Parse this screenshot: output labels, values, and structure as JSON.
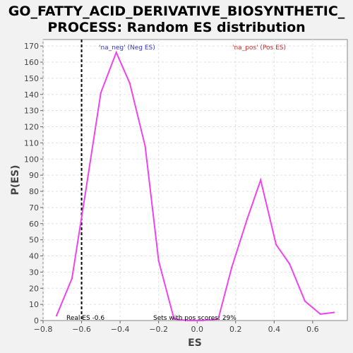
{
  "chart_data": {
    "type": "line",
    "title_lines": [
      "GO_FATTY_ACID_DERIVATIVE_BIOSYNTHETIC_",
      "PROCESS: Random ES distribution"
    ],
    "xlabel": "ES",
    "ylabel": "P(ES)",
    "xlim": [
      -0.8,
      0.78
    ],
    "ylim": [
      0,
      174
    ],
    "xticks": [
      -0.8,
      -0.6,
      -0.4,
      -0.2,
      0.0,
      0.2,
      0.4,
      0.6
    ],
    "xtick_labels": [
      "−0.8",
      "−0.6",
      "−0.4",
      "−0.2",
      "0.0",
      "0.2",
      "0.4",
      "0.6"
    ],
    "yticks": [
      0,
      10,
      20,
      30,
      40,
      50,
      60,
      70,
      80,
      90,
      100,
      110,
      120,
      130,
      140,
      150,
      160,
      170
    ],
    "ytick_labels": [
      "0",
      "10",
      "20",
      "30",
      "40",
      "50",
      "60",
      "70",
      "80",
      "90",
      "100",
      "110",
      "120",
      "130",
      "140",
      "150",
      "160",
      "170"
    ],
    "grid": true,
    "series": [
      {
        "color": "#ee44ee",
        "x": [
          -0.73,
          -0.65,
          -0.58,
          -0.5,
          -0.42,
          -0.35,
          -0.27,
          -0.2,
          -0.12,
          -0.05,
          0.03,
          0.11,
          0.18,
          0.26,
          0.33,
          0.41,
          0.48,
          0.56,
          0.64,
          0.71
        ],
        "y": [
          3,
          26,
          79,
          141,
          166,
          147,
          108,
          37,
          1,
          0,
          0,
          1,
          33,
          63,
          87,
          47,
          35,
          12,
          4,
          5
        ]
      }
    ],
    "real_es_line": {
      "x": -0.6,
      "color": "#000000"
    },
    "annotations": {
      "neg": {
        "text": "'na_neg' (Neg ES)",
        "color": "#3333cc"
      },
      "pos": {
        "text": "'na_pos' (Pos ES)",
        "color": "#dd2222"
      },
      "real_es": {
        "text": "Real ES -0.6",
        "color": "#000000"
      },
      "pos_scores": {
        "text": "Sets with pos scores: 29%",
        "color": "#000000"
      }
    }
  }
}
